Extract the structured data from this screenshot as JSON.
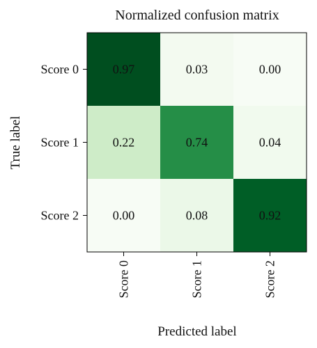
{
  "chart_data": {
    "type": "heatmap",
    "title": "Normalized confusion matrix",
    "xlabel": "Predicted label",
    "ylabel": "True label",
    "x_categories": [
      "Score 0",
      "Score 1",
      "Score 2"
    ],
    "y_categories": [
      "Score 0",
      "Score 1",
      "Score 2"
    ],
    "values": [
      [
        0.97,
        0.03,
        0.0
      ],
      [
        0.22,
        0.74,
        0.04
      ],
      [
        0.0,
        0.08,
        0.92
      ]
    ],
    "value_range": [
      0,
      1
    ],
    "colormap": "Greens",
    "colors": {
      "low": "#f7fcf5",
      "high": "#00441b",
      "text_dark": "#111111",
      "text_light": "#ffffff",
      "frame": "#000000"
    },
    "grid": false
  }
}
